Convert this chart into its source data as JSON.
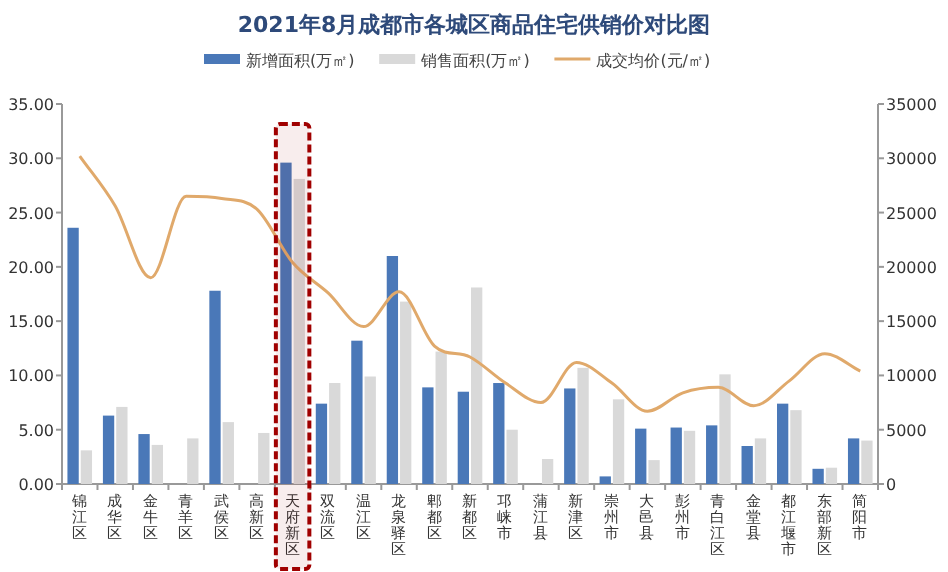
{
  "chart_data": {
    "type": "bar",
    "title": "2021年8月成都市各城区商品住宅供销价对比图",
    "categories": [
      "锦江区",
      "成华区",
      "金牛区",
      "青羊区",
      "武侯区",
      "高新区",
      "天府新区",
      "双流区",
      "温江区",
      "龙泉驿区",
      "郫都区",
      "新都区",
      "邛崃市",
      "蒲江县",
      "新津区",
      "崇州市",
      "大邑县",
      "彭州市",
      "青白江区",
      "金堂县",
      "都江堰市",
      "东部新区",
      "简阳市"
    ],
    "series": [
      {
        "name": "新增面积(万㎡)",
        "color": "#4a78b8",
        "values": [
          23.6,
          6.3,
          4.6,
          0,
          17.8,
          0,
          29.6,
          7.4,
          13.2,
          21.0,
          8.9,
          8.5,
          9.3,
          0,
          8.8,
          0.7,
          5.1,
          5.2,
          5.4,
          3.5,
          7.4,
          1.4,
          4.2
        ]
      },
      {
        "name": "销售面积(万㎡)",
        "color": "#d9d9d9",
        "values": [
          3.1,
          7.1,
          3.6,
          4.2,
          5.7,
          4.7,
          28.1,
          9.3,
          9.9,
          16.8,
          12.2,
          18.1,
          5.0,
          2.3,
          10.7,
          7.8,
          2.2,
          4.9,
          10.1,
          4.2,
          6.8,
          1.5,
          4.0
        ]
      },
      {
        "name": "成交均价(元/㎡)",
        "type": "line",
        "axis": "y2",
        "color": "#e0a96b",
        "values": [
          30200,
          25600,
          19000,
          26500,
          26300,
          25300,
          20400,
          17600,
          14500,
          17700,
          12700,
          11700,
          9300,
          7500,
          11200,
          9300,
          6700,
          8400,
          8900,
          7200,
          9500,
          12000,
          10400
        ]
      }
    ],
    "ylim": [
      0,
      35
    ],
    "yticks": [
      {
        "value": 0,
        "label": "0.00"
      },
      {
        "value": 5,
        "label": "5.00"
      },
      {
        "value": 10,
        "label": "10.00"
      },
      {
        "value": 15,
        "label": "15.00"
      },
      {
        "value": 20,
        "label": "20.00"
      },
      {
        "value": 25,
        "label": "25.00"
      },
      {
        "value": 30,
        "label": "30.00"
      },
      {
        "value": 35,
        "label": "35.00"
      }
    ],
    "y2lim": [
      0,
      35000
    ],
    "y2ticks": [
      0,
      5000,
      10000,
      15000,
      20000,
      25000,
      30000,
      35000
    ],
    "bands": [
      {
        "axis": "x",
        "from": "天府新区",
        "to": "天府新区",
        "color": "#a00000"
      }
    ],
    "legend": "top"
  }
}
